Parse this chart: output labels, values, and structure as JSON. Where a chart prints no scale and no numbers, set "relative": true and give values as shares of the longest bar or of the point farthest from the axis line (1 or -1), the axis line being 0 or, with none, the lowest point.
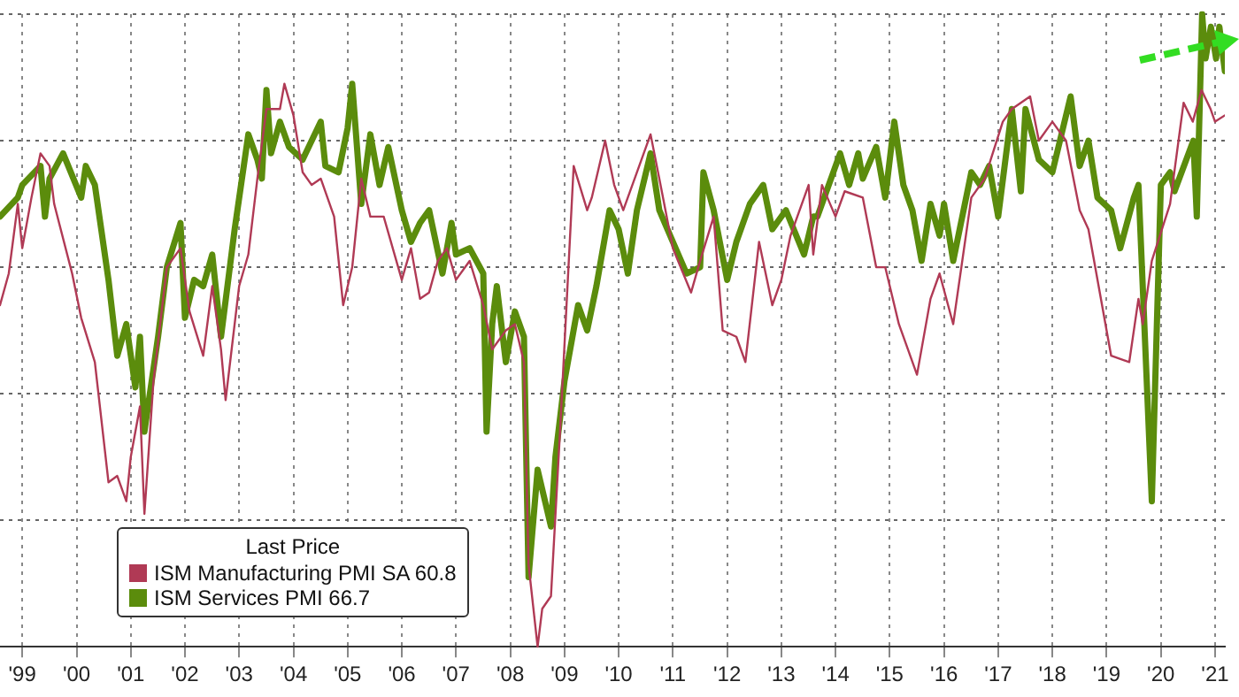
{
  "chart_data": {
    "type": "line",
    "relative": true,
    "legend": "bottom left",
    "legend_title": "Last Price",
    "grid": true,
    "marker": "none",
    "line_style": "solid",
    "xlim": [
      "1999-02",
      "2021-09-05"
    ],
    "xticks": [
      {
        "value": "1999-07",
        "label": "'99"
      },
      {
        "value": "2000-07",
        "label": "'00"
      },
      {
        "value": "2001-07",
        "label": "'01"
      },
      {
        "value": "2002-07",
        "label": "'02"
      },
      {
        "value": "2003-07",
        "label": "'03"
      },
      {
        "value": "2004-07",
        "label": "'04"
      },
      {
        "value": "2005-07",
        "label": "'05"
      },
      {
        "value": "2006-07",
        "label": "'06"
      },
      {
        "value": "2007-07",
        "label": "'07"
      },
      {
        "value": "2008-07",
        "label": "'08"
      },
      {
        "value": "2009-07",
        "label": "'09"
      },
      {
        "value": "2010-07",
        "label": "'10"
      },
      {
        "value": "2011-07",
        "label": "'11"
      },
      {
        "value": "2012-07",
        "label": "'12"
      },
      {
        "value": "2013-07",
        "label": "'13"
      },
      {
        "value": "2014-07",
        "label": "'14"
      },
      {
        "value": "2015-07",
        "label": "'15"
      },
      {
        "value": "2016-07",
        "label": "'16"
      },
      {
        "value": "2017-07",
        "label": "'17"
      },
      {
        "value": "2018-07",
        "label": "'18"
      },
      {
        "value": "2019-07",
        "label": "'19"
      },
      {
        "value": "2020-07",
        "label": "'20"
      },
      {
        "value": "2021-07",
        "label": "'21"
      }
    ],
    "series": [
      {
        "name": "ISM Manufacturing PMI SA 60.8",
        "color": "#b03a55",
        "x": [
          "1999-02",
          "1999-04",
          "1999-06",
          "1999-07",
          "1999-09",
          "1999-11",
          "2000-01",
          "2000-02",
          "2000-06",
          "2000-08",
          "2000-11",
          "2001-02",
          "2001-04",
          "2001-06",
          "2001-07",
          "2001-09",
          "2001-10",
          "2001-12",
          "2002-03",
          "2002-06",
          "2002-08",
          "2002-11",
          "2003-01",
          "2003-03",
          "2003-04",
          "2003-07",
          "2003-09",
          "2003-11",
          "2004-01",
          "2004-04",
          "2004-05",
          "2004-07",
          "2004-09",
          "2004-11",
          "2005-01",
          "2005-04",
          "2005-06",
          "2005-08",
          "2005-10",
          "2005-12",
          "2006-03",
          "2006-07",
          "2006-09",
          "2006-11",
          "2007-01",
          "2007-03",
          "2007-05",
          "2007-07",
          "2007-10",
          "2008-01",
          "2008-03",
          "2008-06",
          "2008-08",
          "2008-10",
          "2008-11",
          "2009-01",
          "2009-02",
          "2009-04",
          "2009-06",
          "2009-09",
          "2009-12",
          "2010-01",
          "2010-04",
          "2010-06",
          "2010-08",
          "2010-11",
          "2011-02",
          "2011-04",
          "2011-07",
          "2011-11",
          "2012-01",
          "2012-04",
          "2012-06",
          "2012-09",
          "2012-11",
          "2013-02",
          "2013-05",
          "2013-07",
          "2013-09",
          "2014-01",
          "2014-02",
          "2014-04",
          "2014-07",
          "2014-09",
          "2015-01",
          "2015-04",
          "2015-06",
          "2015-09",
          "2016-01",
          "2016-04",
          "2016-06",
          "2016-09",
          "2017-01",
          "2017-04",
          "2017-08",
          "2017-10",
          "2018-02",
          "2018-04",
          "2018-07",
          "2018-10",
          "2019-01",
          "2019-03",
          "2019-08",
          "2019-12",
          "2020-02",
          "2020-03",
          "2020-05",
          "2020-09",
          "2020-12",
          "2021-02",
          "2021-04",
          "2021-06",
          "2021-07",
          "2021-09-05"
        ],
        "values": [
          0.54,
          0.59,
          0.7,
          0.63,
          0.71,
          0.78,
          0.76,
          0.7,
          0.59,
          0.52,
          0.45,
          0.26,
          0.27,
          0.23,
          0.3,
          0.38,
          0.21,
          0.42,
          0.6,
          0.63,
          0.53,
          0.46,
          0.57,
          0.47,
          0.39,
          0.57,
          0.62,
          0.74,
          0.85,
          0.85,
          0.89,
          0.84,
          0.75,
          0.73,
          0.74,
          0.68,
          0.54,
          0.6,
          0.74,
          0.68,
          0.68,
          0.58,
          0.63,
          0.55,
          0.56,
          0.61,
          0.63,
          0.58,
          0.61,
          0.54,
          0.47,
          0.5,
          0.51,
          0.45,
          0.13,
          0,
          0.06,
          0.08,
          0.34,
          0.76,
          0.69,
          0.71,
          0.8,
          0.73,
          0.69,
          0.75,
          0.81,
          0.74,
          0.63,
          0.56,
          0.61,
          0.68,
          0.5,
          0.49,
          0.45,
          0.64,
          0.54,
          0.58,
          0.65,
          0.73,
          0.62,
          0.73,
          0.68,
          0.72,
          0.71,
          0.6,
          0.6,
          0.51,
          0.43,
          0.55,
          0.59,
          0.51,
          0.71,
          0.74,
          0.83,
          0.85,
          0.87,
          0.8,
          0.83,
          0.8,
          0.69,
          0.66,
          0.46,
          0.45,
          0.55,
          0.51,
          0.61,
          0.7,
          0.86,
          0.83,
          0.88,
          0.85,
          0.83,
          0.84
        ]
      },
      {
        "name": "ISM Services PMI 66.7",
        "color": "#5b8c0c",
        "x": [
          "1999-02",
          "1999-06",
          "1999-07",
          "1999-11",
          "1999-12",
          "2000-01",
          "2000-04",
          "2000-08",
          "2000-09",
          "2000-11",
          "2001-02",
          "2001-04",
          "2001-06",
          "2001-08",
          "2001-09",
          "2001-10",
          "2002-01",
          "2002-03",
          "2002-06",
          "2002-07",
          "2002-09",
          "2002-11",
          "2003-01",
          "2003-03",
          "2003-06",
          "2003-09",
          "2003-11",
          "2003-12",
          "2004-01",
          "2004-02",
          "2004-04",
          "2004-06",
          "2004-09",
          "2005-01",
          "2005-02",
          "2005-05",
          "2005-07",
          "2005-08",
          "2005-10",
          "2005-12",
          "2006-02",
          "2006-04",
          "2006-07",
          "2006-09",
          "2006-11",
          "2007-01",
          "2007-04",
          "2007-06",
          "2007-07",
          "2007-10",
          "2008-01",
          "2008-01-23",
          "2008-03",
          "2008-04",
          "2008-06",
          "2008-08",
          "2008-10",
          "2008-11",
          "2009-01",
          "2009-04",
          "2009-05",
          "2009-07",
          "2009-10",
          "2009-12",
          "2010-02",
          "2010-05",
          "2010-07",
          "2010-09",
          "2010-11",
          "2011-02",
          "2011-04",
          "2011-07",
          "2011-10",
          "2012-01",
          "2012-01-23",
          "2012-04",
          "2012-07",
          "2012-09",
          "2012-12",
          "2013-03",
          "2013-05",
          "2013-08",
          "2013-12",
          "2014-02",
          "2014-03",
          "2014-08",
          "2014-10",
          "2014-12",
          "2015-01",
          "2015-04",
          "2015-06",
          "2015-08",
          "2015-10",
          "2015-12",
          "2016-02",
          "2016-04",
          "2016-06",
          "2016-07",
          "2016-09",
          "2016-11",
          "2017-01",
          "2017-03",
          "2017-05",
          "2017-07",
          "2017-10",
          "2017-12",
          "2018-01",
          "2018-04",
          "2018-07",
          "2018-11",
          "2019-01",
          "2019-03",
          "2019-05",
          "2019-08",
          "2019-10",
          "2020-01",
          "2020-02",
          "2020-05",
          "2020-07",
          "2020-09",
          "2020-10",
          "2021-02-05",
          "2021-02-28",
          "2021-04-05",
          "2021-04-28",
          "2021-06-03",
          "2021-07-08",
          "2021-07-30",
          "2021-09-05"
        ],
        "values": [
          0.68,
          0.71,
          0.73,
          0.76,
          0.68,
          0.74,
          0.78,
          0.71,
          0.76,
          0.73,
          0.58,
          0.46,
          0.51,
          0.41,
          0.49,
          0.34,
          0.49,
          0.6,
          0.67,
          0.52,
          0.58,
          0.57,
          0.62,
          0.49,
          0.66,
          0.81,
          0.77,
          0.74,
          0.88,
          0.78,
          0.83,
          0.79,
          0.77,
          0.83,
          0.76,
          0.75,
          0.82,
          0.89,
          0.7,
          0.81,
          0.73,
          0.79,
          0.69,
          0.64,
          0.67,
          0.69,
          0.59,
          0.67,
          0.62,
          0.63,
          0.59,
          0.34,
          0.51,
          0.57,
          0.45,
          0.53,
          0.49,
          0.11,
          0.28,
          0.19,
          0.3,
          0.42,
          0.54,
          0.5,
          0.57,
          0.69,
          0.66,
          0.59,
          0.69,
          0.78,
          0.69,
          0.64,
          0.59,
          0.6,
          0.75,
          0.69,
          0.58,
          0.64,
          0.7,
          0.73,
          0.66,
          0.69,
          0.62,
          0.68,
          0.68,
          0.78,
          0.73,
          0.78,
          0.74,
          0.79,
          0.71,
          0.83,
          0.73,
          0.69,
          0.61,
          0.7,
          0.65,
          0.7,
          0.61,
          0.68,
          0.75,
          0.73,
          0.76,
          0.68,
          0.85,
          0.72,
          0.85,
          0.77,
          0.75,
          0.87,
          0.76,
          0.8,
          0.71,
          0.69,
          0.63,
          0.71,
          0.73,
          0.23,
          0.73,
          0.75,
          0.72,
          0.8,
          0.68,
          1,
          0.93,
          0.98,
          0.93,
          0.98,
          0.91
        ]
      }
    ]
  }
}
